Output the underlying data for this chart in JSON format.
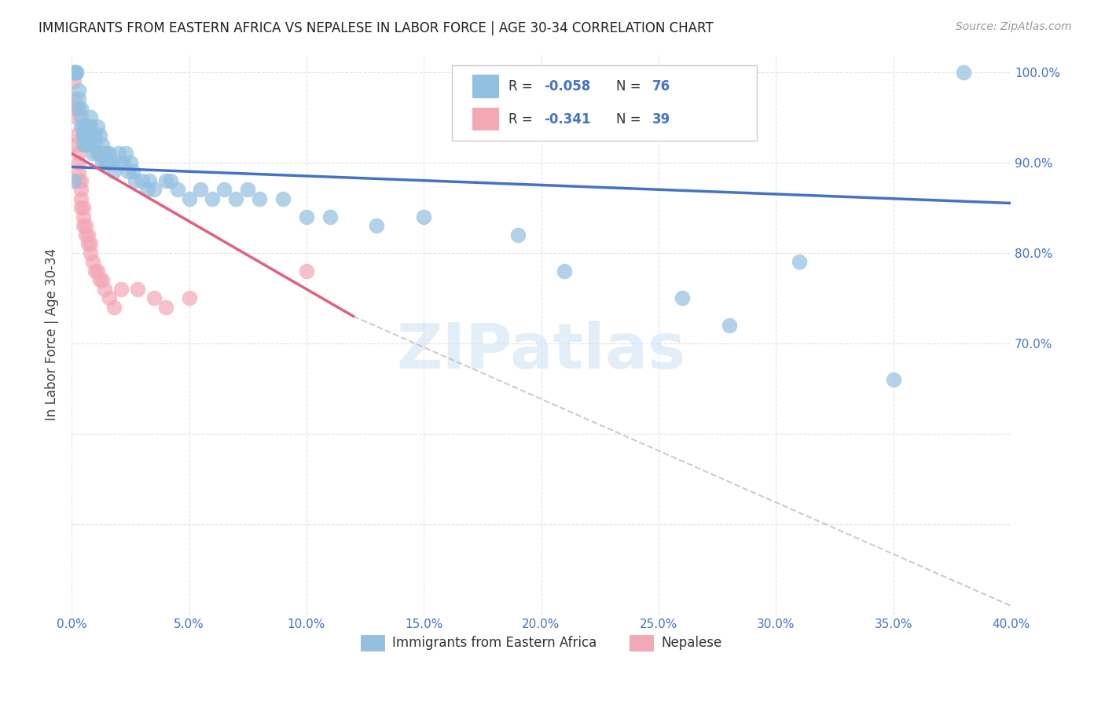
{
  "title": "IMMIGRANTS FROM EASTERN AFRICA VS NEPALESE IN LABOR FORCE | AGE 30-34 CORRELATION CHART",
  "source": "Source: ZipAtlas.com",
  "ylabel": "In Labor Force | Age 30-34",
  "legend_label1": "Immigrants from Eastern Africa",
  "legend_label2": "Nepalese",
  "R1": "-0.058",
  "N1": "76",
  "R2": "-0.341",
  "N2": "39",
  "xlim": [
    0.0,
    0.4
  ],
  "ylim": [
    0.4,
    1.02
  ],
  "xticks": [
    0.0,
    0.05,
    0.1,
    0.15,
    0.2,
    0.25,
    0.3,
    0.35,
    0.4
  ],
  "yticks_right": [
    1.0,
    0.9,
    0.8,
    0.7
  ],
  "color_blue": "#92C0E0",
  "color_pink": "#F4A7B5",
  "color_blue_line": "#4472C4",
  "color_pink_line": "#E06080",
  "color_gray_dash": "#CCBBBB",
  "background_color": "#FFFFFF",
  "grid_color": "#DDDDDD",
  "watermark": "ZIPatlas",
  "blue_scatter_x": [
    0.001,
    0.001,
    0.002,
    0.002,
    0.003,
    0.003,
    0.003,
    0.004,
    0.004,
    0.004,
    0.005,
    0.005,
    0.005,
    0.005,
    0.006,
    0.006,
    0.006,
    0.006,
    0.007,
    0.007,
    0.007,
    0.008,
    0.008,
    0.009,
    0.009,
    0.01,
    0.01,
    0.011,
    0.011,
    0.012,
    0.012,
    0.013,
    0.013,
    0.014,
    0.014,
    0.015,
    0.015,
    0.016,
    0.016,
    0.017,
    0.018,
    0.02,
    0.021,
    0.022,
    0.023,
    0.024,
    0.025,
    0.026,
    0.027,
    0.03,
    0.032,
    0.033,
    0.035,
    0.04,
    0.042,
    0.045,
    0.05,
    0.055,
    0.06,
    0.065,
    0.07,
    0.075,
    0.08,
    0.09,
    0.1,
    0.11,
    0.13,
    0.15,
    0.19,
    0.21,
    0.26,
    0.28,
    0.31,
    0.35,
    0.001,
    0.38
  ],
  "blue_scatter_y": [
    1.0,
    1.0,
    1.0,
    1.0,
    0.98,
    0.97,
    0.96,
    0.96,
    0.95,
    0.94,
    0.94,
    0.93,
    0.93,
    0.92,
    0.94,
    0.93,
    0.93,
    0.92,
    0.94,
    0.93,
    0.92,
    0.95,
    0.94,
    0.93,
    0.91,
    0.93,
    0.92,
    0.94,
    0.91,
    0.93,
    0.91,
    0.92,
    0.9,
    0.91,
    0.9,
    0.91,
    0.9,
    0.91,
    0.9,
    0.9,
    0.89,
    0.91,
    0.9,
    0.9,
    0.91,
    0.89,
    0.9,
    0.89,
    0.88,
    0.88,
    0.87,
    0.88,
    0.87,
    0.88,
    0.88,
    0.87,
    0.86,
    0.87,
    0.86,
    0.87,
    0.86,
    0.87,
    0.86,
    0.86,
    0.84,
    0.84,
    0.83,
    0.84,
    0.82,
    0.78,
    0.75,
    0.72,
    0.79,
    0.66,
    0.88,
    1.0
  ],
  "pink_scatter_x": [
    0.001,
    0.001,
    0.001,
    0.001,
    0.002,
    0.002,
    0.002,
    0.002,
    0.003,
    0.003,
    0.003,
    0.003,
    0.004,
    0.004,
    0.004,
    0.004,
    0.005,
    0.005,
    0.005,
    0.006,
    0.006,
    0.007,
    0.007,
    0.008,
    0.008,
    0.009,
    0.01,
    0.011,
    0.012,
    0.013,
    0.014,
    0.016,
    0.018,
    0.021,
    0.028,
    0.035,
    0.04,
    0.05,
    0.1
  ],
  "pink_scatter_y": [
    1.0,
    0.99,
    0.97,
    0.96,
    0.96,
    0.95,
    0.93,
    0.92,
    0.91,
    0.9,
    0.89,
    0.88,
    0.88,
    0.87,
    0.86,
    0.85,
    0.85,
    0.84,
    0.83,
    0.83,
    0.82,
    0.82,
    0.81,
    0.81,
    0.8,
    0.79,
    0.78,
    0.78,
    0.77,
    0.77,
    0.76,
    0.75,
    0.74,
    0.76,
    0.76,
    0.75,
    0.74,
    0.75,
    0.78
  ],
  "blue_trendline": [
    0.0,
    0.4,
    0.895,
    0.855
  ],
  "pink_trendline_solid": [
    0.0,
    0.12,
    0.91,
    0.73
  ],
  "gray_dash_line": [
    0.12,
    0.4,
    0.73,
    0.41
  ]
}
